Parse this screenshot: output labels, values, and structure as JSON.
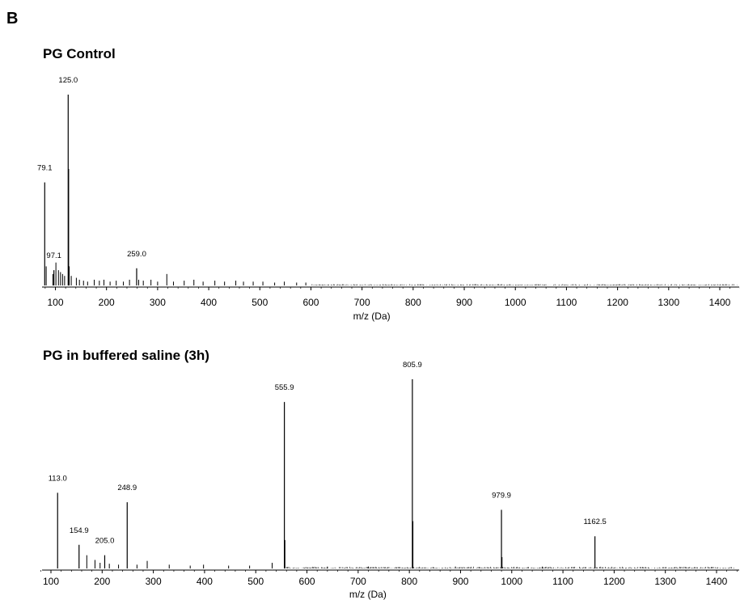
{
  "figure_label": "B",
  "chart_data": [
    {
      "type": "bar",
      "title": "PG Control",
      "xlabel": "m/z (Da)",
      "ylabel": "",
      "xlim": [
        80,
        1440
      ],
      "xticks": [
        100,
        200,
        300,
        400,
        500,
        600,
        700,
        800,
        900,
        1000,
        1100,
        1200,
        1300,
        1400
      ],
      "grid": false,
      "legend": "none",
      "peaks": [
        {
          "x": 79.1,
          "y": 54,
          "label": "79.1"
        },
        {
          "x": 97.1,
          "y": 8,
          "label": "97.1"
        },
        {
          "x": 125.0,
          "y": 100,
          "label": "125.0"
        },
        {
          "x": 259.0,
          "y": 9,
          "label": "259.0"
        }
      ],
      "minor_peaks": [
        {
          "x": 82,
          "y": 10
        },
        {
          "x": 95,
          "y": 6
        },
        {
          "x": 101,
          "y": 12
        },
        {
          "x": 106,
          "y": 8
        },
        {
          "x": 110,
          "y": 7
        },
        {
          "x": 114,
          "y": 6
        },
        {
          "x": 118,
          "y": 5
        },
        {
          "x": 126,
          "y": 61
        },
        {
          "x": 127,
          "y": 10
        },
        {
          "x": 131,
          "y": 5
        },
        {
          "x": 141,
          "y": 4
        },
        {
          "x": 147,
          "y": 3
        },
        {
          "x": 155,
          "y": 2.5
        },
        {
          "x": 163,
          "y": 2
        },
        {
          "x": 176,
          "y": 3
        },
        {
          "x": 186,
          "y": 2.5
        },
        {
          "x": 195,
          "y": 3
        },
        {
          "x": 207,
          "y": 2
        },
        {
          "x": 219,
          "y": 2.5
        },
        {
          "x": 233,
          "y": 2
        },
        {
          "x": 245,
          "y": 3
        },
        {
          "x": 263,
          "y": 3
        },
        {
          "x": 272,
          "y": 2.5
        },
        {
          "x": 287,
          "y": 3
        },
        {
          "x": 300,
          "y": 2
        },
        {
          "x": 318,
          "y": 6
        },
        {
          "x": 331,
          "y": 2
        },
        {
          "x": 352,
          "y": 2.5
        },
        {
          "x": 371,
          "y": 3
        },
        {
          "x": 389,
          "y": 2
        },
        {
          "x": 412,
          "y": 2.5
        },
        {
          "x": 431,
          "y": 2
        },
        {
          "x": 453,
          "y": 2.5
        },
        {
          "x": 468,
          "y": 2
        },
        {
          "x": 487,
          "y": 2
        },
        {
          "x": 506,
          "y": 2
        },
        {
          "x": 529,
          "y": 1.5
        },
        {
          "x": 548,
          "y": 2
        },
        {
          "x": 572,
          "y": 1.5
        },
        {
          "x": 590,
          "y": 1.5
        }
      ]
    },
    {
      "type": "bar",
      "title": "PG in buffered saline (3h)",
      "xlabel": "m/z (Da)",
      "ylabel": "",
      "xlim": [
        80,
        1440
      ],
      "xticks": [
        100,
        200,
        300,
        400,
        500,
        600,
        700,
        800,
        900,
        1000,
        1100,
        1200,
        1300,
        1400
      ],
      "grid": false,
      "legend": "none",
      "peaks": [
        {
          "x": 113.0,
          "y": 40,
          "label": "113.0"
        },
        {
          "x": 154.9,
          "y": 12.5,
          "label": "154.9"
        },
        {
          "x": 205.0,
          "y": 7,
          "label": "205.0"
        },
        {
          "x": 248.9,
          "y": 35,
          "label": "248.9"
        },
        {
          "x": 555.9,
          "y": 88,
          "label": "555.9"
        },
        {
          "x": 805.9,
          "y": 100,
          "label": "805.9"
        },
        {
          "x": 979.9,
          "y": 31,
          "label": "979.9"
        },
        {
          "x": 1162.5,
          "y": 17,
          "label": "1162.5"
        }
      ],
      "minor_peaks": [
        {
          "x": 170,
          "y": 7
        },
        {
          "x": 186,
          "y": 4.5
        },
        {
          "x": 196,
          "y": 3
        },
        {
          "x": 214,
          "y": 2.5
        },
        {
          "x": 232,
          "y": 2
        },
        {
          "x": 268,
          "y": 2
        },
        {
          "x": 288,
          "y": 4
        },
        {
          "x": 331,
          "y": 2
        },
        {
          "x": 372,
          "y": 1.5
        },
        {
          "x": 398,
          "y": 2
        },
        {
          "x": 447,
          "y": 1.5
        },
        {
          "x": 488,
          "y": 1.5
        },
        {
          "x": 532,
          "y": 3
        },
        {
          "x": 557,
          "y": 15
        },
        {
          "x": 807,
          "y": 25
        },
        {
          "x": 981,
          "y": 6
        },
        {
          "x": 640,
          "y": 1
        },
        {
          "x": 720,
          "y": 1
        },
        {
          "x": 890,
          "y": 1
        },
        {
          "x": 1060,
          "y": 1
        }
      ]
    }
  ]
}
